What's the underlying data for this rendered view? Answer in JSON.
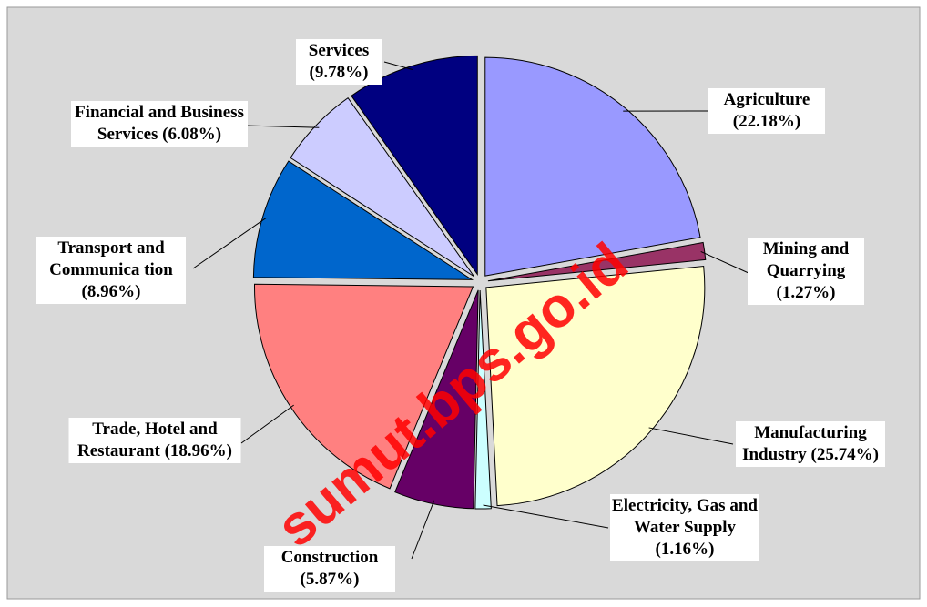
{
  "chart_data": {
    "type": "pie",
    "categories": [
      "Agriculture",
      "Mining and Quarrying",
      "Manufacturing Industry",
      "Electricity, Gas and Water Supply",
      "Construction",
      "Trade, Hotel and Restaurant",
      "Transport and Communica tion",
      "Financial and Business Services",
      "Services"
    ],
    "values": [
      22.18,
      1.27,
      25.74,
      1.16,
      5.87,
      18.96,
      8.96,
      6.08,
      9.78
    ],
    "value_labels": [
      "(22.18%)",
      "(1.27%)",
      "(25.74%)",
      "(1.16%)",
      "(5.87%)",
      "(18.96%)",
      "(8.96%)",
      "(6.08%)",
      "(9.78%)"
    ],
    "colors": [
      "#9999ff",
      "#993366",
      "#ffffcc",
      "#ccffff",
      "#660066",
      "#ff8080",
      "#0066cc",
      "#ccccff",
      "#000080"
    ],
    "watermark": "sumut.bps.go.id"
  }
}
